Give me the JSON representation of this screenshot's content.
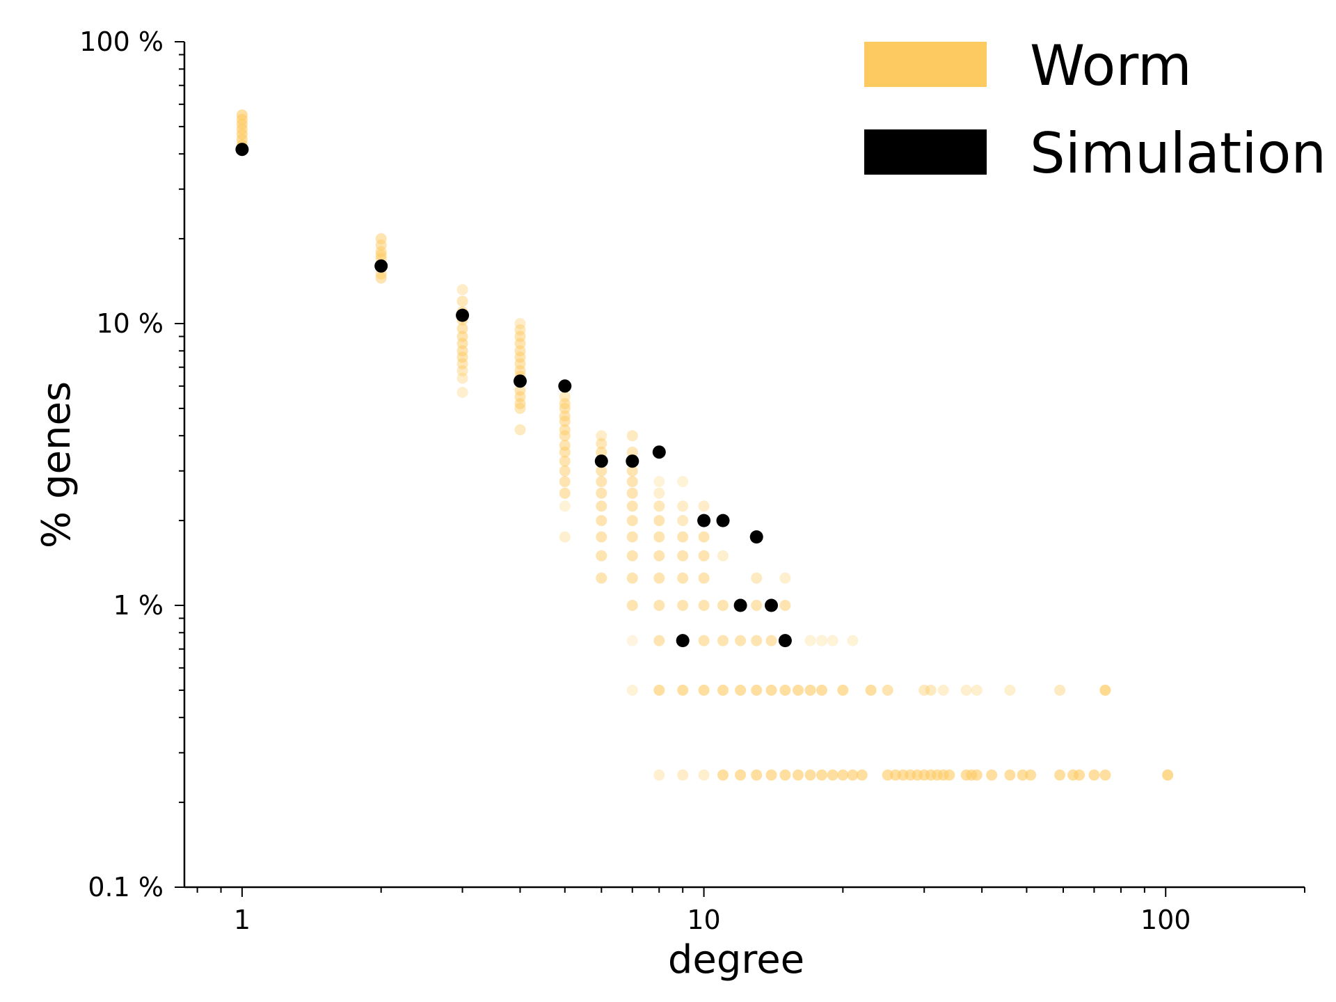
{
  "chart_data": {
    "type": "scatter",
    "title": "",
    "xlabel": "degree",
    "ylabel": "% genes",
    "xscale": "log",
    "yscale": "log",
    "xlim": [
      0.75,
      200
    ],
    "ylim": [
      0.1,
      100
    ],
    "x_ticks": [
      {
        "value": 1,
        "label": "1"
      },
      {
        "value": 10,
        "label": "10"
      },
      {
        "value": 100,
        "label": "100"
      }
    ],
    "y_ticks": [
      {
        "value": 0.1,
        "label": "0.1 %"
      },
      {
        "value": 1,
        "label": "1 %"
      },
      {
        "value": 10,
        "label": "10 %"
      },
      {
        "value": 100,
        "label": "100 %"
      }
    ],
    "grid": false,
    "legend_position": "top-right",
    "legend": [
      {
        "name": "Worm",
        "color": "#fdca61"
      },
      {
        "name": "Simulation",
        "color": "#000000"
      }
    ],
    "series": [
      {
        "name": "Worm",
        "color": "#fdca61",
        "points": [
          {
            "x": 1,
            "y": 55,
            "a": 0.6
          },
          {
            "x": 1,
            "y": 53,
            "a": 0.6
          },
          {
            "x": 1,
            "y": 51,
            "a": 0.6
          },
          {
            "x": 1,
            "y": 49,
            "a": 0.6
          },
          {
            "x": 1,
            "y": 47,
            "a": 0.6
          },
          {
            "x": 1,
            "y": 45,
            "a": 0.6
          },
          {
            "x": 1,
            "y": 43,
            "a": 0.6
          },
          {
            "x": 2,
            "y": 20,
            "a": 0.5
          },
          {
            "x": 2,
            "y": 19,
            "a": 0.5
          },
          {
            "x": 2,
            "y": 18,
            "a": 0.5
          },
          {
            "x": 2,
            "y": 17.5,
            "a": 0.5
          },
          {
            "x": 2,
            "y": 17,
            "a": 0.5
          },
          {
            "x": 2,
            "y": 16,
            "a": 0.5
          },
          {
            "x": 2,
            "y": 15,
            "a": 0.5
          },
          {
            "x": 2,
            "y": 14.5,
            "a": 0.5
          },
          {
            "x": 3,
            "y": 13.2,
            "a": 0.35
          },
          {
            "x": 3,
            "y": 12,
            "a": 0.45
          },
          {
            "x": 3,
            "y": 11,
            "a": 0.5
          },
          {
            "x": 3,
            "y": 10.3,
            "a": 0.5
          },
          {
            "x": 3,
            "y": 9.6,
            "a": 0.5
          },
          {
            "x": 3,
            "y": 9,
            "a": 0.5
          },
          {
            "x": 3,
            "y": 8.5,
            "a": 0.5
          },
          {
            "x": 3,
            "y": 8,
            "a": 0.5
          },
          {
            "x": 3,
            "y": 7.6,
            "a": 0.5
          },
          {
            "x": 3,
            "y": 7.2,
            "a": 0.45
          },
          {
            "x": 3,
            "y": 6.8,
            "a": 0.4
          },
          {
            "x": 3,
            "y": 6.4,
            "a": 0.35
          },
          {
            "x": 3,
            "y": 5.7,
            "a": 0.3
          },
          {
            "x": 4,
            "y": 10,
            "a": 0.35
          },
          {
            "x": 4,
            "y": 9.5,
            "a": 0.45
          },
          {
            "x": 4,
            "y": 9,
            "a": 0.5
          },
          {
            "x": 4,
            "y": 8.5,
            "a": 0.5
          },
          {
            "x": 4,
            "y": 8,
            "a": 0.5
          },
          {
            "x": 4,
            "y": 7.6,
            "a": 0.5
          },
          {
            "x": 4,
            "y": 7.2,
            "a": 0.5
          },
          {
            "x": 4,
            "y": 6.8,
            "a": 0.5
          },
          {
            "x": 4,
            "y": 6.5,
            "a": 0.5
          },
          {
            "x": 4,
            "y": 6.2,
            "a": 0.5
          },
          {
            "x": 4,
            "y": 5.8,
            "a": 0.5
          },
          {
            "x": 4,
            "y": 5.5,
            "a": 0.5
          },
          {
            "x": 4,
            "y": 5.2,
            "a": 0.5
          },
          {
            "x": 4,
            "y": 5,
            "a": 0.45
          },
          {
            "x": 4,
            "y": 4.2,
            "a": 0.4
          },
          {
            "x": 5,
            "y": 5.5,
            "a": 0.4
          },
          {
            "x": 5,
            "y": 5.2,
            "a": 0.5
          },
          {
            "x": 5,
            "y": 5,
            "a": 0.5
          },
          {
            "x": 5,
            "y": 4.7,
            "a": 0.5
          },
          {
            "x": 5,
            "y": 4.5,
            "a": 0.5
          },
          {
            "x": 5,
            "y": 4.2,
            "a": 0.5
          },
          {
            "x": 5,
            "y": 4,
            "a": 0.5
          },
          {
            "x": 5,
            "y": 3.7,
            "a": 0.5
          },
          {
            "x": 5,
            "y": 3.5,
            "a": 0.5
          },
          {
            "x": 5,
            "y": 3.25,
            "a": 0.5
          },
          {
            "x": 5,
            "y": 3,
            "a": 0.5
          },
          {
            "x": 5,
            "y": 2.75,
            "a": 0.5
          },
          {
            "x": 5,
            "y": 2.5,
            "a": 0.5
          },
          {
            "x": 5,
            "y": 2.25,
            "a": 0.25
          },
          {
            "x": 5,
            "y": 1.75,
            "a": 0.3
          },
          {
            "x": 6,
            "y": 4,
            "a": 0.35
          },
          {
            "x": 6,
            "y": 3.75,
            "a": 0.45
          },
          {
            "x": 6,
            "y": 3.5,
            "a": 0.5
          },
          {
            "x": 6,
            "y": 3,
            "a": 0.5
          },
          {
            "x": 6,
            "y": 2.75,
            "a": 0.5
          },
          {
            "x": 6,
            "y": 2.5,
            "a": 0.5
          },
          {
            "x": 6,
            "y": 2.25,
            "a": 0.5
          },
          {
            "x": 6,
            "y": 2,
            "a": 0.5
          },
          {
            "x": 6,
            "y": 1.75,
            "a": 0.5
          },
          {
            "x": 6,
            "y": 1.5,
            "a": 0.5
          },
          {
            "x": 6,
            "y": 1.25,
            "a": 0.5
          },
          {
            "x": 7,
            "y": 4,
            "a": 0.4
          },
          {
            "x": 7,
            "y": 3.5,
            "a": 0.45
          },
          {
            "x": 7,
            "y": 3,
            "a": 0.5
          },
          {
            "x": 7,
            "y": 2.75,
            "a": 0.5
          },
          {
            "x": 7,
            "y": 2.5,
            "a": 0.5
          },
          {
            "x": 7,
            "y": 2.25,
            "a": 0.5
          },
          {
            "x": 7,
            "y": 2,
            "a": 0.5
          },
          {
            "x": 7,
            "y": 1.75,
            "a": 0.5
          },
          {
            "x": 7,
            "y": 1.5,
            "a": 0.5
          },
          {
            "x": 7,
            "y": 1.25,
            "a": 0.5
          },
          {
            "x": 7,
            "y": 1,
            "a": 0.5
          },
          {
            "x": 7,
            "y": 0.75,
            "a": 0.2
          },
          {
            "x": 7,
            "y": 0.5,
            "a": 0.25
          },
          {
            "x": 8,
            "y": 2.75,
            "a": 0.25
          },
          {
            "x": 8,
            "y": 2.5,
            "a": 0.3
          },
          {
            "x": 8,
            "y": 2.25,
            "a": 0.45
          },
          {
            "x": 8,
            "y": 2,
            "a": 0.5
          },
          {
            "x": 8,
            "y": 1.75,
            "a": 0.5
          },
          {
            "x": 8,
            "y": 1.5,
            "a": 0.5
          },
          {
            "x": 8,
            "y": 1.25,
            "a": 0.5
          },
          {
            "x": 8,
            "y": 1,
            "a": 0.5
          },
          {
            "x": 8,
            "y": 0.75,
            "a": 0.5
          },
          {
            "x": 8,
            "y": 0.5,
            "a": 0.6
          },
          {
            "x": 8,
            "y": 0.25,
            "a": 0.3
          },
          {
            "x": 9,
            "y": 2.75,
            "a": 0.25
          },
          {
            "x": 9,
            "y": 2.25,
            "a": 0.35
          },
          {
            "x": 9,
            "y": 2,
            "a": 0.4
          },
          {
            "x": 9,
            "y": 1.75,
            "a": 0.5
          },
          {
            "x": 9,
            "y": 1.5,
            "a": 0.5
          },
          {
            "x": 9,
            "y": 1.25,
            "a": 0.5
          },
          {
            "x": 9,
            "y": 1,
            "a": 0.5
          },
          {
            "x": 9,
            "y": 0.5,
            "a": 0.6
          },
          {
            "x": 9,
            "y": 0.25,
            "a": 0.35
          },
          {
            "x": 10,
            "y": 2.25,
            "a": 0.35
          },
          {
            "x": 10,
            "y": 1.75,
            "a": 0.5
          },
          {
            "x": 10,
            "y": 1.5,
            "a": 0.5
          },
          {
            "x": 10,
            "y": 1.25,
            "a": 0.5
          },
          {
            "x": 10,
            "y": 1,
            "a": 0.5
          },
          {
            "x": 10,
            "y": 0.75,
            "a": 0.5
          },
          {
            "x": 10,
            "y": 0.5,
            "a": 0.6
          },
          {
            "x": 10,
            "y": 0.25,
            "a": 0.3
          },
          {
            "x": 11,
            "y": 1.5,
            "a": 0.3
          },
          {
            "x": 11,
            "y": 1,
            "a": 0.5
          },
          {
            "x": 11,
            "y": 0.75,
            "a": 0.5
          },
          {
            "x": 11,
            "y": 0.5,
            "a": 0.6
          },
          {
            "x": 11,
            "y": 0.25,
            "a": 0.6
          },
          {
            "x": 12,
            "y": 0.75,
            "a": 0.5
          },
          {
            "x": 12,
            "y": 0.5,
            "a": 0.6
          },
          {
            "x": 12,
            "y": 0.25,
            "a": 0.6
          },
          {
            "x": 13,
            "y": 1.25,
            "a": 0.4
          },
          {
            "x": 13,
            "y": 1,
            "a": 0.5
          },
          {
            "x": 13,
            "y": 0.75,
            "a": 0.5
          },
          {
            "x": 13,
            "y": 0.5,
            "a": 0.6
          },
          {
            "x": 13,
            "y": 0.25,
            "a": 0.6
          },
          {
            "x": 14,
            "y": 1,
            "a": 0.5
          },
          {
            "x": 14,
            "y": 0.75,
            "a": 0.5
          },
          {
            "x": 14,
            "y": 0.5,
            "a": 0.6
          },
          {
            "x": 14,
            "y": 0.25,
            "a": 0.6
          },
          {
            "x": 15,
            "y": 1.25,
            "a": 0.3
          },
          {
            "x": 15,
            "y": 1,
            "a": 0.5
          },
          {
            "x": 15,
            "y": 0.5,
            "a": 0.6
          },
          {
            "x": 15,
            "y": 0.25,
            "a": 0.6
          },
          {
            "x": 16,
            "y": 0.5,
            "a": 0.6
          },
          {
            "x": 16,
            "y": 0.25,
            "a": 0.6
          },
          {
            "x": 17,
            "y": 0.75,
            "a": 0.25
          },
          {
            "x": 17,
            "y": 0.5,
            "a": 0.6
          },
          {
            "x": 17,
            "y": 0.25,
            "a": 0.6
          },
          {
            "x": 18,
            "y": 0.75,
            "a": 0.25
          },
          {
            "x": 18,
            "y": 0.5,
            "a": 0.6
          },
          {
            "x": 18,
            "y": 0.25,
            "a": 0.6
          },
          {
            "x": 19,
            "y": 0.75,
            "a": 0.25
          },
          {
            "x": 19,
            "y": 0.25,
            "a": 0.6
          },
          {
            "x": 20,
            "y": 0.5,
            "a": 0.6
          },
          {
            "x": 20,
            "y": 0.25,
            "a": 0.6
          },
          {
            "x": 21,
            "y": 0.75,
            "a": 0.25
          },
          {
            "x": 21,
            "y": 0.25,
            "a": 0.6
          },
          {
            "x": 22,
            "y": 0.25,
            "a": 0.6
          },
          {
            "x": 23,
            "y": 0.5,
            "a": 0.6
          },
          {
            "x": 25,
            "y": 0.5,
            "a": 0.5
          },
          {
            "x": 25,
            "y": 0.25,
            "a": 0.6
          },
          {
            "x": 26,
            "y": 0.25,
            "a": 0.6
          },
          {
            "x": 27,
            "y": 0.25,
            "a": 0.6
          },
          {
            "x": 28,
            "y": 0.25,
            "a": 0.6
          },
          {
            "x": 29,
            "y": 0.25,
            "a": 0.6
          },
          {
            "x": 30,
            "y": 0.5,
            "a": 0.4
          },
          {
            "x": 30,
            "y": 0.25,
            "a": 0.6
          },
          {
            "x": 31,
            "y": 0.5,
            "a": 0.4
          },
          {
            "x": 31,
            "y": 0.25,
            "a": 0.6
          },
          {
            "x": 32,
            "y": 0.25,
            "a": 0.6
          },
          {
            "x": 33,
            "y": 0.5,
            "a": 0.3
          },
          {
            "x": 33,
            "y": 0.25,
            "a": 0.6
          },
          {
            "x": 34,
            "y": 0.25,
            "a": 0.6
          },
          {
            "x": 37,
            "y": 0.5,
            "a": 0.3
          },
          {
            "x": 37,
            "y": 0.25,
            "a": 0.6
          },
          {
            "x": 38,
            "y": 0.25,
            "a": 0.6
          },
          {
            "x": 39,
            "y": 0.5,
            "a": 0.3
          },
          {
            "x": 39,
            "y": 0.25,
            "a": 0.6
          },
          {
            "x": 42,
            "y": 0.25,
            "a": 0.6
          },
          {
            "x": 46,
            "y": 0.5,
            "a": 0.3
          },
          {
            "x": 46,
            "y": 0.25,
            "a": 0.6
          },
          {
            "x": 49,
            "y": 0.25,
            "a": 0.6
          },
          {
            "x": 51,
            "y": 0.25,
            "a": 0.6
          },
          {
            "x": 59,
            "y": 0.5,
            "a": 0.4
          },
          {
            "x": 59,
            "y": 0.25,
            "a": 0.6
          },
          {
            "x": 63,
            "y": 0.25,
            "a": 0.6
          },
          {
            "x": 65,
            "y": 0.25,
            "a": 0.6
          },
          {
            "x": 70,
            "y": 0.25,
            "a": 0.6
          },
          {
            "x": 74,
            "y": 0.5,
            "a": 0.7
          },
          {
            "x": 74,
            "y": 0.25,
            "a": 0.6
          },
          {
            "x": 101,
            "y": 0.25,
            "a": 0.7
          }
        ]
      },
      {
        "name": "Simulation",
        "color": "#000000",
        "points": [
          {
            "x": 1,
            "y": 41.5
          },
          {
            "x": 2,
            "y": 16
          },
          {
            "x": 3,
            "y": 10.7
          },
          {
            "x": 4,
            "y": 6.25
          },
          {
            "x": 5,
            "y": 6
          },
          {
            "x": 6,
            "y": 3.25
          },
          {
            "x": 7,
            "y": 3.25
          },
          {
            "x": 8,
            "y": 3.5
          },
          {
            "x": 9,
            "y": 0.75
          },
          {
            "x": 10,
            "y": 2
          },
          {
            "x": 11,
            "y": 2
          },
          {
            "x": 12,
            "y": 1
          },
          {
            "x": 13,
            "y": 1.75
          },
          {
            "x": 14,
            "y": 1
          },
          {
            "x": 15,
            "y": 0.75
          }
        ]
      }
    ]
  }
}
